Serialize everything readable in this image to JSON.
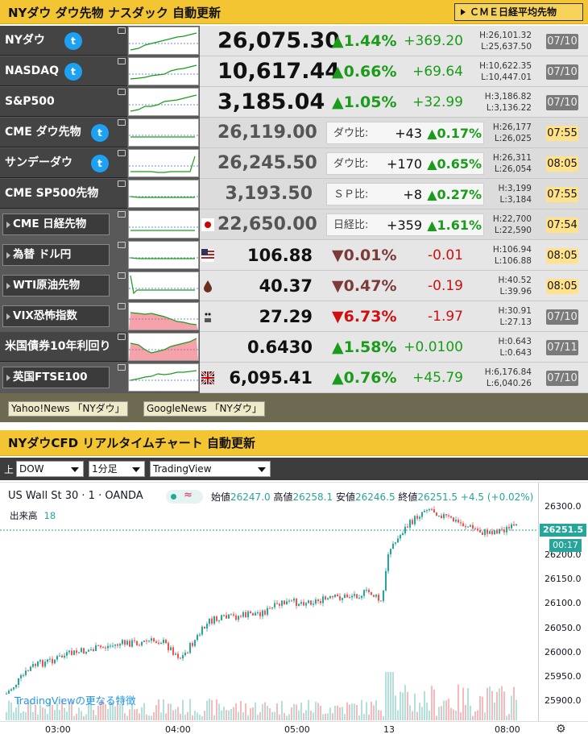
{
  "header1": {
    "title": "NYダウ ダウ先物 ナスダック 自動更新",
    "cme_button": "ＣＭＥ日経平均先物"
  },
  "rows": [
    {
      "label": "NYダウ",
      "twitter": true,
      "price": "26,075.30",
      "pct": "▲1.44%",
      "chg": "+369.20",
      "high": "H:26,101.32",
      "low": "L:25,637.50",
      "date": "07/10",
      "dir": "up"
    },
    {
      "label": "NASDAQ",
      "twitter": true,
      "price": "10,617.44",
      "pct": "▲0.66%",
      "chg": "+69.64",
      "high": "H:10,622.35",
      "low": "L:10,447.01",
      "date": "07/10",
      "dir": "up"
    },
    {
      "label": "S&P500",
      "twitter": false,
      "price": "3,185.04",
      "pct": "▲1.05%",
      "chg": "+32.99",
      "high": "H:3,186.82",
      "low": "L:3,136.22",
      "date": "07/10",
      "dir": "up"
    },
    {
      "label": "CME ダウ先物",
      "twitter": true,
      "price": "26,119.00",
      "sub_label": "ダウ比:",
      "sub_diff": "+43",
      "sub_pct": "▲0.17%",
      "high": "H:26,177",
      "low": "L:26,025",
      "date": "07:55"
    },
    {
      "label": "サンデーダウ",
      "twitter": true,
      "price": "26,245.50",
      "sub_label": "ダウ比:",
      "sub_diff": "+170",
      "sub_pct": "▲0.65%",
      "high": "H:26,311",
      "low": "L:26,054",
      "date": "08:05"
    },
    {
      "label": "CME SP500先物",
      "twitter": false,
      "price": "3,193.50",
      "sub_label": "ＳＰ比:",
      "sub_diff": "+8",
      "sub_pct": "▲0.27%",
      "high": "H:3,199",
      "low": "L:3,184",
      "date": "07:55"
    },
    {
      "label": "CME 日経先物",
      "button": true,
      "flag": "jp",
      "price": "22,650.00",
      "sub_label": "日経比:",
      "sub_diff": "+359",
      "sub_pct": "▲1.61%",
      "high": "H:22,700",
      "low": "L:22,590",
      "date": "07:54"
    },
    {
      "label": "為替 ドル円",
      "button": true,
      "flag": "us",
      "price": "106.88",
      "pct": "▼0.01%",
      "chg": "-0.01",
      "high": "H:106.94",
      "low": "L:106.88",
      "date": "08:05",
      "dir": "dnb"
    },
    {
      "label": "WTI原油先物",
      "button": true,
      "flag": "oil",
      "price": "40.37",
      "pct": "▼0.47%",
      "chg": "-0.19",
      "high": "H:40.52",
      "low": "L:39.96",
      "date": "08:05",
      "dir": "dnb"
    },
    {
      "label": "VIX恐怖指数",
      "button": true,
      "flag": "vix",
      "price": "27.29",
      "pct": "▼6.73%",
      "chg": "-1.97",
      "high": "H:30.91",
      "low": "L:27.13",
      "date": "07/10",
      "dir": "dn"
    },
    {
      "label": "米国債券10年利回り",
      "price": "0.6430",
      "pct": "▲1.58%",
      "chg": "+0.0100",
      "high": "H:0.643",
      "low": "L:0.643",
      "date": "07/11",
      "dir": "up"
    },
    {
      "label": "英国FTSE100",
      "button": true,
      "flag": "uk",
      "price": "6,095.41",
      "pct": "▲0.76%",
      "chg": "+45.79",
      "high": "H:6,176.84",
      "low": "L:6,040.26",
      "date": "07/10",
      "dir": "up"
    }
  ],
  "links": {
    "yahoo": "Yahoo!News 「NYダウ」",
    "google": "GoogleNews 「NYダウ」"
  },
  "header2": {
    "title": "NYダウCFD リアルタイムチャート 自動更新"
  },
  "toolbar": {
    "up_label": "上",
    "symbol": "DOW",
    "interval": "1分足",
    "provider": "TradingView"
  },
  "tv": {
    "symbol_line": "US Wall St 30 · 1 · OANDA",
    "o_label": "始値",
    "o": "26247.0",
    "h_label": "高値",
    "h": "26258.1",
    "l_label": "安値",
    "l": "26246.5",
    "c_label": "終値",
    "c": "26251.5",
    "change": "+4.5 (+0.02%)",
    "vol_label": "出来高",
    "vol": "18",
    "last_price": "26251.5",
    "countdown": "00:17",
    "promo": "TradingViewの更なる特徴",
    "y_ticks": [
      "26300.0",
      "26250.0",
      "26200.0",
      "26150.0",
      "26100.0",
      "26050.0",
      "26000.0",
      "25950.0",
      "25900.0"
    ],
    "x_ticks": [
      "03:00",
      "04:00",
      "05:00",
      "13",
      "08:00"
    ]
  }
}
